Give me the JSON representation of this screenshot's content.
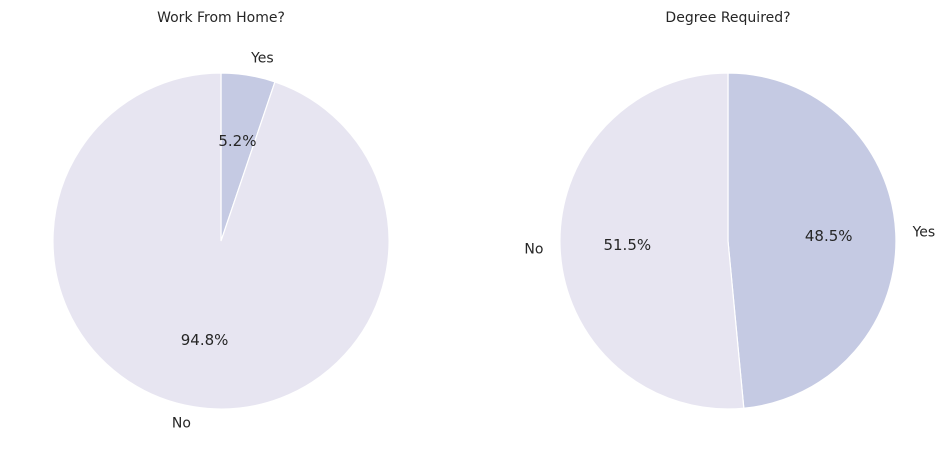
{
  "chart_data": [
    {
      "type": "pie",
      "title": "Work From Home?",
      "categories": [
        "Yes",
        "No"
      ],
      "values": [
        5.2,
        94.8
      ],
      "value_labels": [
        "5.2%",
        "94.8%"
      ],
      "start_angle_deg": 90,
      "direction": "clockwise",
      "colors": [
        "#c5cae3",
        "#e7e5f1"
      ]
    },
    {
      "type": "pie",
      "title": "Degree Required?",
      "categories": [
        "Yes",
        "No"
      ],
      "values": [
        48.5,
        51.5
      ],
      "value_labels": [
        "48.5%",
        "51.5%"
      ],
      "start_angle_deg": 90,
      "direction": "clockwise",
      "colors": [
        "#c5cae3",
        "#e7e5f1"
      ]
    }
  ]
}
